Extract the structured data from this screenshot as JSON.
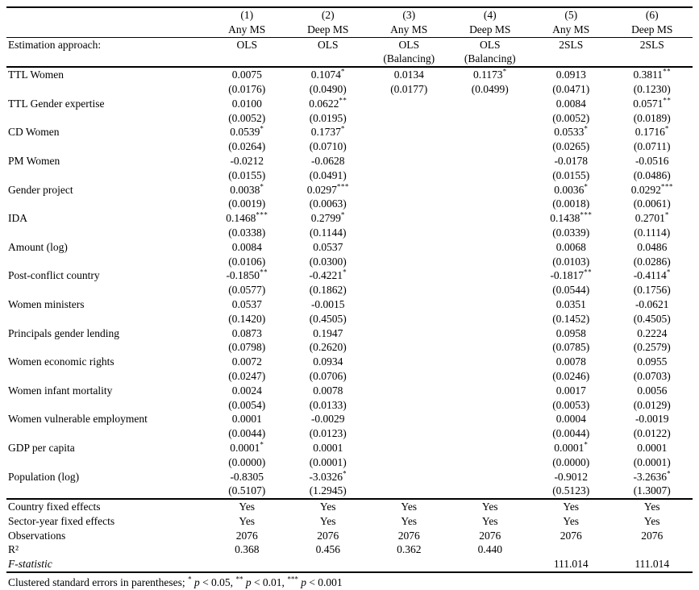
{
  "estimation_label": "Estimation approach:",
  "columns": [
    {
      "number": "(1)",
      "sample": "Any MS",
      "approach": "OLS",
      "approach2": ""
    },
    {
      "number": "(2)",
      "sample": "Deep MS",
      "approach": "OLS",
      "approach2": ""
    },
    {
      "number": "(3)",
      "sample": "Any MS",
      "approach": "OLS",
      "approach2": "(Balancing)"
    },
    {
      "number": "(4)",
      "sample": "Deep MS",
      "approach": "OLS",
      "approach2": "(Balancing)"
    },
    {
      "number": "(5)",
      "sample": "Any MS",
      "approach": "2SLS",
      "approach2": ""
    },
    {
      "number": "(6)",
      "sample": "Deep MS",
      "approach": "2SLS",
      "approach2": ""
    }
  ],
  "variables": [
    {
      "label": "TTL Women",
      "coefs": [
        "0.0075",
        "0.1074*",
        "0.0134",
        "0.1173*",
        "0.0913",
        "0.3811**"
      ],
      "ses": [
        "(0.0176)",
        "(0.0490)",
        "(0.0177)",
        "(0.0499)",
        "(0.0471)",
        "(0.1230)"
      ]
    },
    {
      "label": "TTL Gender expertise",
      "coefs": [
        "0.0100",
        "0.0622**",
        "",
        "",
        "0.0084",
        "0.0571**"
      ],
      "ses": [
        "(0.0052)",
        "(0.0195)",
        "",
        "",
        "(0.0052)",
        "(0.0189)"
      ]
    },
    {
      "label": "CD Women",
      "coefs": [
        "0.0539*",
        "0.1737*",
        "",
        "",
        "0.0533*",
        "0.1716*"
      ],
      "ses": [
        "(0.0264)",
        "(0.0710)",
        "",
        "",
        "(0.0265)",
        "(0.0711)"
      ]
    },
    {
      "label": "PM Women",
      "coefs": [
        "-0.0212",
        "-0.0628",
        "",
        "",
        "-0.0178",
        "-0.0516"
      ],
      "ses": [
        "(0.0155)",
        "(0.0491)",
        "",
        "",
        "(0.0155)",
        "(0.0486)"
      ]
    },
    {
      "label": "Gender project",
      "coefs": [
        "0.0038*",
        "0.0297***",
        "",
        "",
        "0.0036*",
        "0.0292***"
      ],
      "ses": [
        "(0.0019)",
        "(0.0063)",
        "",
        "",
        "(0.0018)",
        "(0.0061)"
      ]
    },
    {
      "label": "IDA",
      "coefs": [
        "0.1468***",
        "0.2799*",
        "",
        "",
        "0.1438***",
        "0.2701*"
      ],
      "ses": [
        "(0.0338)",
        "(0.1144)",
        "",
        "",
        "(0.0339)",
        "(0.1114)"
      ]
    },
    {
      "label": "Amount (log)",
      "coefs": [
        "0.0084",
        "0.0537",
        "",
        "",
        "0.0068",
        "0.0486"
      ],
      "ses": [
        "(0.0106)",
        "(0.0300)",
        "",
        "",
        "(0.0103)",
        "(0.0286)"
      ]
    },
    {
      "label": "Post-conflict country",
      "coefs": [
        "-0.1850**",
        "-0.4221*",
        "",
        "",
        "-0.1817**",
        "-0.4114*"
      ],
      "ses": [
        "(0.0577)",
        "(0.1862)",
        "",
        "",
        "(0.0544)",
        "(0.1756)"
      ]
    },
    {
      "label": "Women ministers",
      "coefs": [
        "0.0537",
        "-0.0015",
        "",
        "",
        "0.0351",
        "-0.0621"
      ],
      "ses": [
        "(0.1420)",
        "(0.4505)",
        "",
        "",
        "(0.1452)",
        "(0.4505)"
      ]
    },
    {
      "label": "Principals gender lending",
      "coefs": [
        "0.0873",
        "0.1947",
        "",
        "",
        "0.0958",
        "0.2224"
      ],
      "ses": [
        "(0.0798)",
        "(0.2620)",
        "",
        "",
        "(0.0785)",
        "(0.2579)"
      ]
    },
    {
      "label": "Women economic rights",
      "coefs": [
        "0.0072",
        "0.0934",
        "",
        "",
        "0.0078",
        "0.0955"
      ],
      "ses": [
        "(0.0247)",
        "(0.0706)",
        "",
        "",
        "(0.0246)",
        "(0.0703)"
      ]
    },
    {
      "label": "Women infant mortality",
      "coefs": [
        "0.0024",
        "0.0078",
        "",
        "",
        "0.0017",
        "0.0056"
      ],
      "ses": [
        "(0.0054)",
        "(0.0133)",
        "",
        "",
        "(0.0053)",
        "(0.0129)"
      ]
    },
    {
      "label": "Women vulnerable employment",
      "coefs": [
        "0.0001",
        "-0.0029",
        "",
        "",
        "0.0004",
        "-0.0019"
      ],
      "ses": [
        "(0.0044)",
        "(0.0123)",
        "",
        "",
        "(0.0044)",
        "(0.0122)"
      ]
    },
    {
      "label": "GDP per capita",
      "coefs": [
        "0.0001*",
        "0.0001",
        "",
        "",
        "0.0001*",
        "0.0001"
      ],
      "ses": [
        "(0.0000)",
        "(0.0001)",
        "",
        "",
        "(0.0000)",
        "(0.0001)"
      ]
    },
    {
      "label": "Population (log)",
      "coefs": [
        "-0.8305",
        "-3.0326*",
        "",
        "",
        "-0.9012",
        "-3.2636*"
      ],
      "ses": [
        "(0.5107)",
        "(1.2945)",
        "",
        "",
        "(0.5123)",
        "(1.3007)"
      ]
    }
  ],
  "summary_rows": [
    {
      "label": "Country fixed effects",
      "italic": false,
      "values": [
        "Yes",
        "Yes",
        "Yes",
        "Yes",
        "Yes",
        "Yes"
      ]
    },
    {
      "label": "Sector-year fixed effects",
      "italic": false,
      "values": [
        "Yes",
        "Yes",
        "Yes",
        "Yes",
        "Yes",
        "Yes"
      ]
    },
    {
      "label": "Observations",
      "italic": false,
      "values": [
        "2076",
        "2076",
        "2076",
        "2076",
        "2076",
        "2076"
      ]
    },
    {
      "label": "R²",
      "italic": false,
      "values": [
        "0.368",
        "0.456",
        "0.362",
        "0.440",
        "",
        ""
      ]
    },
    {
      "label": "F-statistic",
      "italic": true,
      "values": [
        "",
        "",
        "",
        "",
        "111.014",
        "111.014"
      ]
    }
  ],
  "footnote": "Clustered standard errors in parentheses; * p < 0.05, ** p < 0.01, *** p < 0.001"
}
